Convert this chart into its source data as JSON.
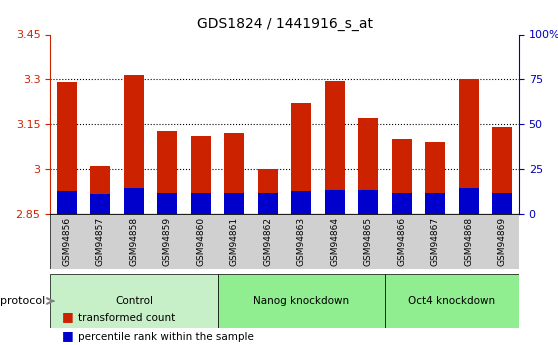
{
  "title": "GDS1824 / 1441916_s_at",
  "samples": [
    "GSM94856",
    "GSM94857",
    "GSM94858",
    "GSM94859",
    "GSM94860",
    "GSM94861",
    "GSM94862",
    "GSM94863",
    "GSM94864",
    "GSM94865",
    "GSM94866",
    "GSM94867",
    "GSM94868",
    "GSM94869"
  ],
  "transformed_count": [
    3.29,
    3.01,
    3.315,
    3.128,
    3.11,
    3.12,
    3.0,
    3.22,
    3.295,
    3.17,
    3.1,
    3.09,
    3.3,
    3.14
  ],
  "percentile_rank": [
    0.075,
    0.065,
    0.085,
    0.07,
    0.07,
    0.07,
    0.07,
    0.075,
    0.08,
    0.08,
    0.07,
    0.07,
    0.085,
    0.07
  ],
  "baseline": 2.85,
  "ymin": 2.85,
  "ymax": 3.45,
  "yticks": [
    2.85,
    3.0,
    3.15,
    3.3,
    3.45
  ],
  "ytick_labels": [
    "2.85",
    "3",
    "3.15",
    "3.3",
    "3.45"
  ],
  "right_yticks": [
    0,
    25,
    50,
    75,
    100
  ],
  "right_ytick_labels": [
    "0",
    "25",
    "50",
    "75",
    "100%"
  ],
  "groups": [
    {
      "label": "Control",
      "start": 0,
      "end": 5,
      "color": "#c8f0c8"
    },
    {
      "label": "Nanog knockdown",
      "start": 5,
      "end": 10,
      "color": "#90ee90"
    },
    {
      "label": "Oct4 knockdown",
      "start": 10,
      "end": 14,
      "color": "#90ee90"
    }
  ],
  "bar_color": "#cc2200",
  "percentile_color": "#0000cc",
  "background_color": "#ffffff",
  "plot_bg_color": "#ffffff",
  "grid_color": "#000000",
  "tick_color_left": "#cc2200",
  "tick_color_right": "#0000bb",
  "label_row_bg": "#d0d0d0",
  "protocol_label": "protocol",
  "legend_items": [
    "transformed count",
    "percentile rank within the sample"
  ],
  "legend_colors": [
    "#cc2200",
    "#0000cc"
  ],
  "group_colors": [
    "#c8f0c8",
    "#90ee90",
    "#90ee90"
  ]
}
